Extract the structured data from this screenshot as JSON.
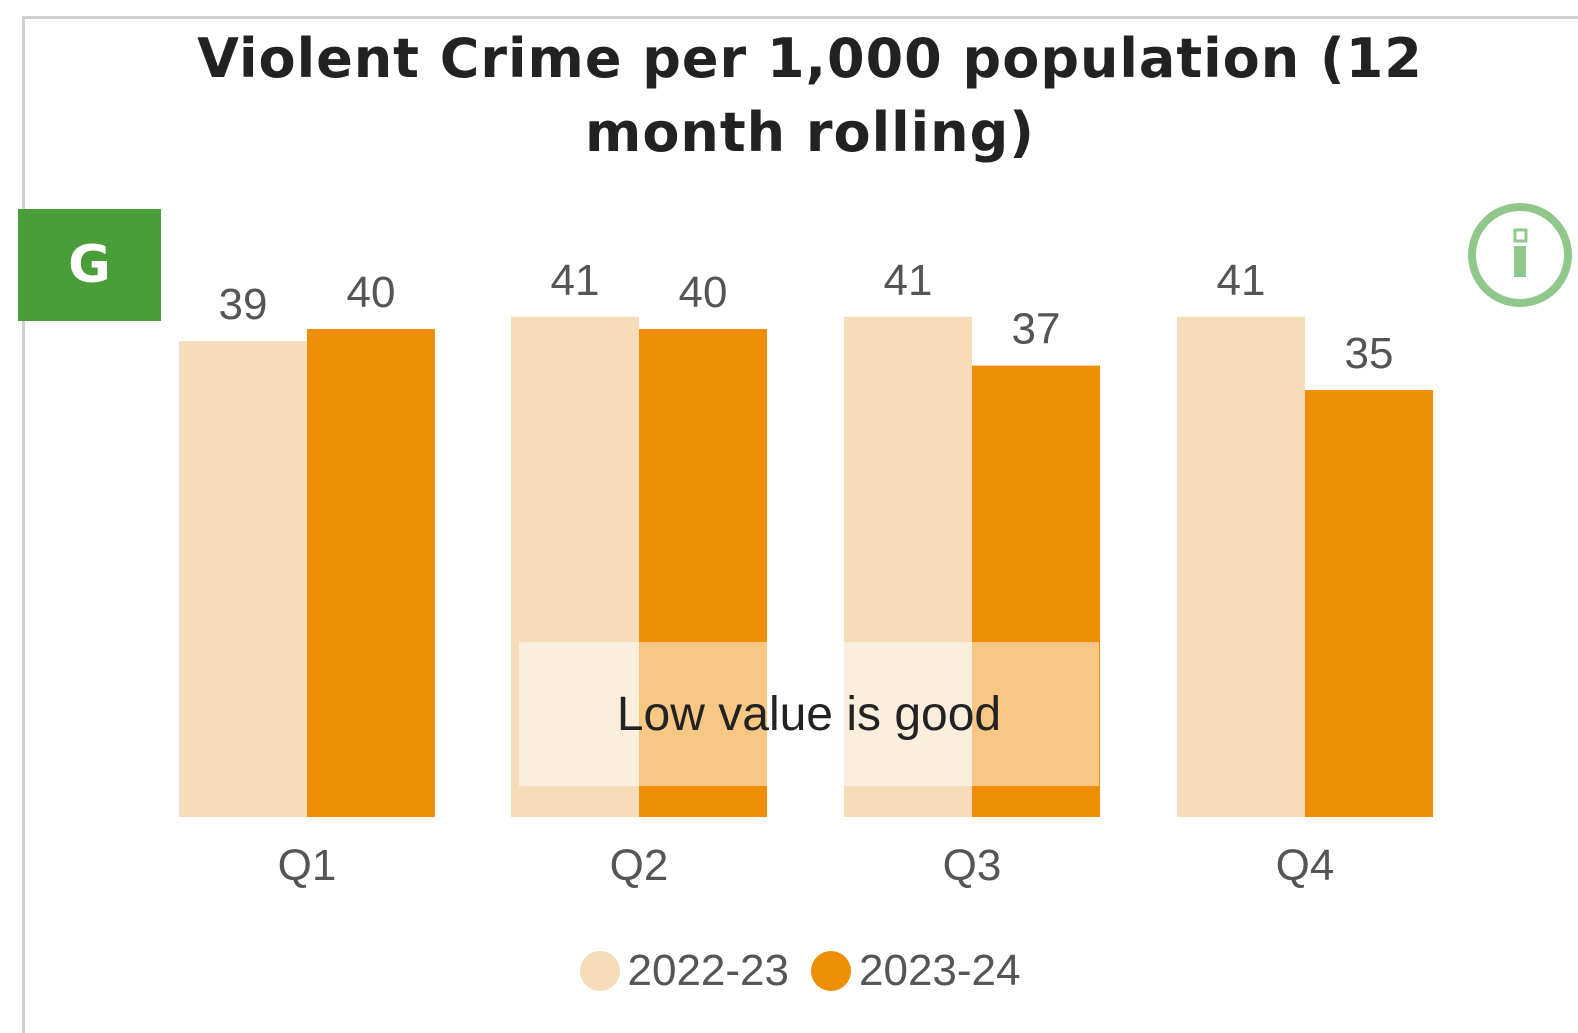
{
  "rag_status": "G",
  "overlay_note": "Low value is good",
  "colors": {
    "series_prev": "#f6dcb8",
    "series_curr": "#ef8e07",
    "rag_green": "#4a9e39",
    "info_ring": "#8fc88a",
    "label_text": "#555555"
  },
  "icons": {
    "info": "info-circle-icon"
  },
  "chart_data": {
    "type": "bar",
    "title": "Violent Crime per 1,000 population (12 month rolling)",
    "xlabel": "",
    "ylabel": "",
    "categories": [
      "Q1",
      "Q2",
      "Q3",
      "Q4"
    ],
    "series": [
      {
        "name": "2022-23",
        "values": [
          39,
          41,
          41,
          41
        ]
      },
      {
        "name": "2023-24",
        "values": [
          40,
          40,
          37,
          35
        ]
      }
    ],
    "ylim": [
      0,
      40
    ],
    "grid": false,
    "legend": "bottom-center",
    "data_labels": true
  }
}
